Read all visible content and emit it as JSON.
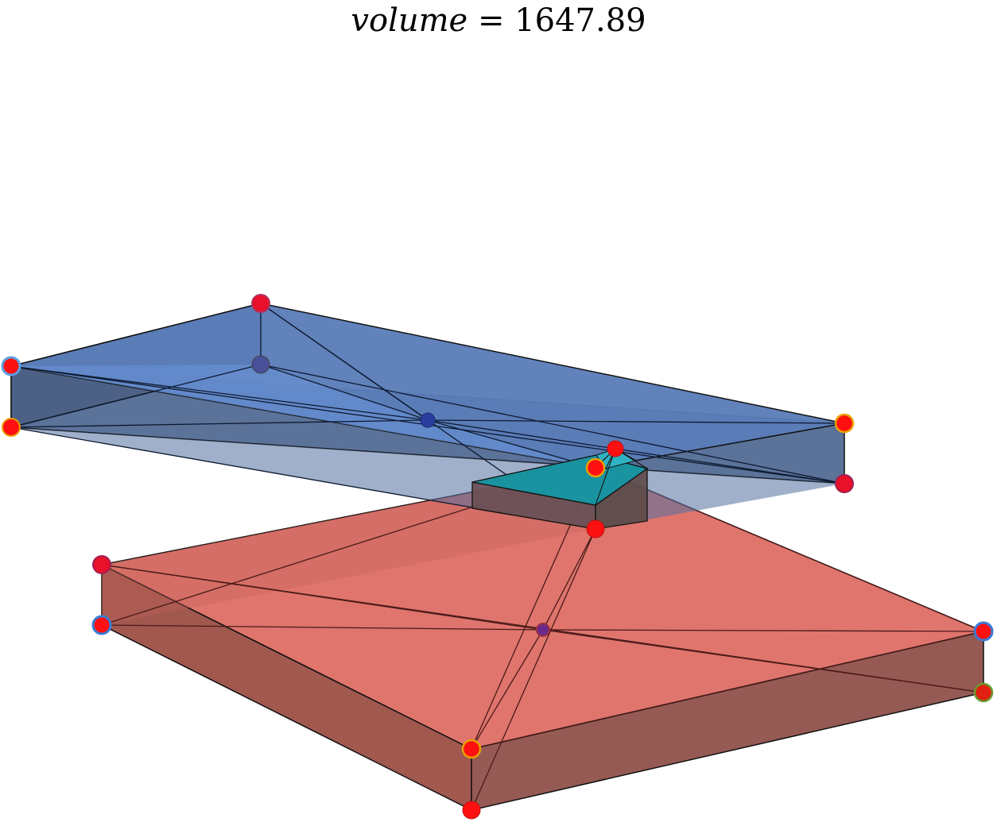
{
  "title": {
    "variable": "volume",
    "operator": " = ",
    "value": "1647.89"
  },
  "colors": {
    "blue_face": "#5a7fc4",
    "blue_dark": "#3f5a85",
    "red_face": "#dd6b62",
    "red_dark": "#8f4a44",
    "cyan_face": "#1a9aa8",
    "vertex_red": "#ff1010",
    "vertex_blue_ring": "#3a7bd5",
    "vertex_orange_ring": "#e8a200",
    "vertex_navy": "#2a3ea0",
    "edge": "#10151f"
  },
  "shapes": {
    "upper_prism": "blue slab",
    "lower_prism": "red slab",
    "intersection": "cyan wedge"
  }
}
